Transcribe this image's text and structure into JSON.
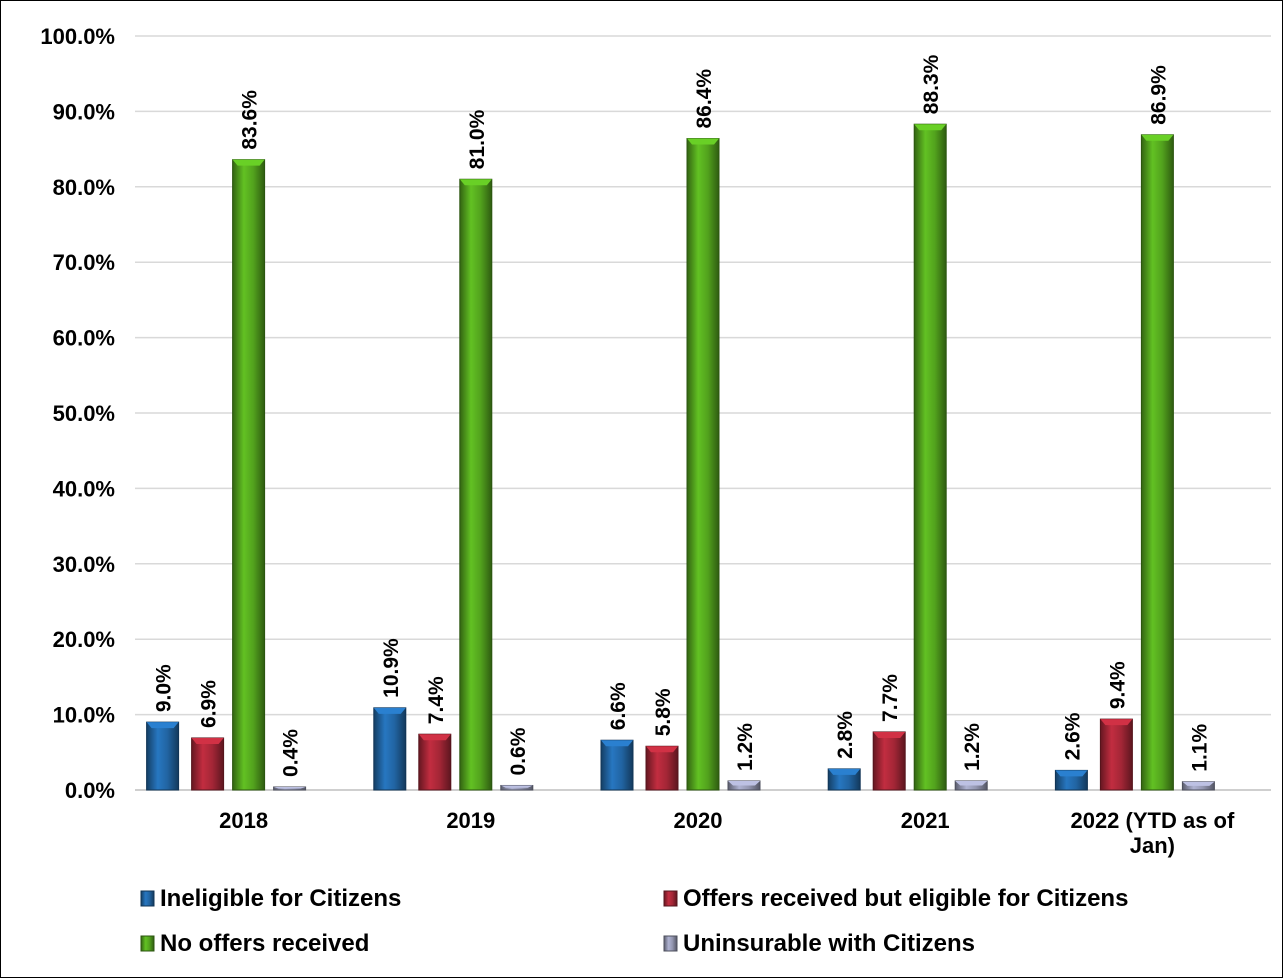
{
  "chart_data": {
    "type": "bar",
    "categories": [
      "2018",
      "2019",
      "2020",
      "2021",
      "2022 (YTD as of Jan)"
    ],
    "series": [
      {
        "name": "Ineligible for Citizens",
        "color": "#1f5f9a",
        "values": [
          9.0,
          10.9,
          6.6,
          2.8,
          2.6
        ],
        "labels": [
          "9.0%",
          "10.9%",
          "6.6%",
          "2.8%",
          "2.6%"
        ]
      },
      {
        "name": "Offers received but eligible for Citizens",
        "color": "#9b2433",
        "values": [
          6.9,
          7.4,
          5.8,
          7.7,
          9.4
        ],
        "labels": [
          "6.9%",
          "7.4%",
          "5.8%",
          "7.7%",
          "9.4%"
        ]
      },
      {
        "name": "No offers received",
        "color": "#4e9a1c",
        "values": [
          83.6,
          81.0,
          86.4,
          88.3,
          86.9
        ],
        "labels": [
          "83.6%",
          "81.0%",
          "86.4%",
          "88.3%",
          "86.9%"
        ]
      },
      {
        "name": "Uninsurable with Citizens",
        "color": "#8c8fa8",
        "values": [
          0.4,
          0.6,
          1.2,
          1.2,
          1.1
        ],
        "labels": [
          "0.4%",
          "0.6%",
          "1.2%",
          "1.2%",
          "1.1%"
        ]
      }
    ],
    "ylim": [
      0,
      100
    ],
    "yticks": [
      "0.0%",
      "10.0%",
      "20.0%",
      "30.0%",
      "40.0%",
      "50.0%",
      "60.0%",
      "70.0%",
      "80.0%",
      "90.0%",
      "100.0%"
    ],
    "grid": true,
    "legend_position": "bottom",
    "title": "",
    "xlabel": "",
    "ylabel": ""
  }
}
